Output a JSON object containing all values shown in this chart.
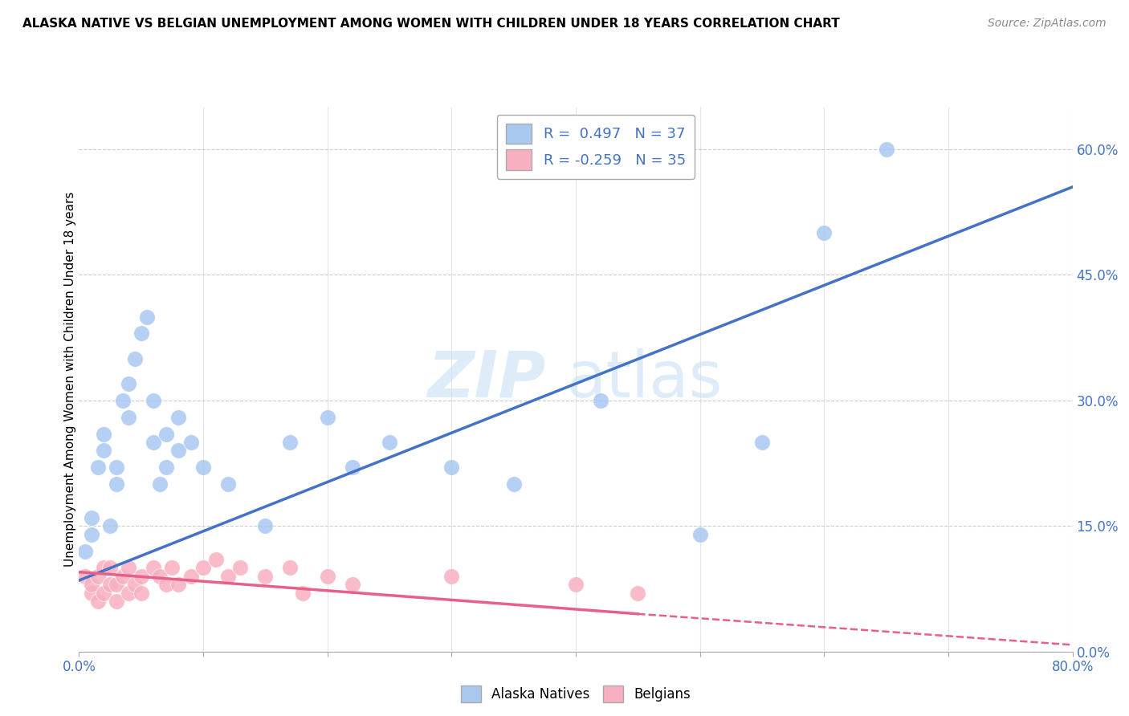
{
  "title": "ALASKA NATIVE VS BELGIAN UNEMPLOYMENT AMONG WOMEN WITH CHILDREN UNDER 18 YEARS CORRELATION CHART",
  "source": "Source: ZipAtlas.com",
  "ylabel": "Unemployment Among Women with Children Under 18 years",
  "xlim": [
    0.0,
    0.8
  ],
  "ylim": [
    0.0,
    0.65
  ],
  "xticks": [
    0.0,
    0.1,
    0.2,
    0.3,
    0.4,
    0.5,
    0.6,
    0.7,
    0.8
  ],
  "xtick_labels_show": [
    "0.0%",
    "",
    "",
    "",
    "",
    "",
    "",
    "",
    "80.0%"
  ],
  "yticks_right": [
    0.0,
    0.15,
    0.3,
    0.45,
    0.6
  ],
  "ytick_labels_right": [
    "0.0%",
    "15.0%",
    "30.0%",
    "45.0%",
    "60.0%"
  ],
  "alaska_R": 0.497,
  "alaska_N": 37,
  "belgian_R": -0.259,
  "belgian_N": 35,
  "alaska_color": "#A8C8F0",
  "belgian_color": "#F8B0C0",
  "alaska_line_color": "#4472C4",
  "belgian_line_color": "#E8608A",
  "watermark_color": "#C8E0F8",
  "alaska_scatter_x": [
    0.005,
    0.01,
    0.01,
    0.015,
    0.02,
    0.02,
    0.025,
    0.03,
    0.03,
    0.035,
    0.04,
    0.04,
    0.045,
    0.05,
    0.055,
    0.06,
    0.06,
    0.065,
    0.07,
    0.07,
    0.08,
    0.08,
    0.09,
    0.1,
    0.12,
    0.15,
    0.17,
    0.2,
    0.22,
    0.25,
    0.3,
    0.35,
    0.42,
    0.5,
    0.55,
    0.6,
    0.65
  ],
  "alaska_scatter_y": [
    0.12,
    0.14,
    0.16,
    0.22,
    0.24,
    0.26,
    0.15,
    0.2,
    0.22,
    0.3,
    0.28,
    0.32,
    0.35,
    0.38,
    0.4,
    0.25,
    0.3,
    0.2,
    0.22,
    0.26,
    0.24,
    0.28,
    0.25,
    0.22,
    0.2,
    0.15,
    0.25,
    0.28,
    0.22,
    0.25,
    0.22,
    0.2,
    0.3,
    0.14,
    0.25,
    0.5,
    0.6
  ],
  "belgian_scatter_x": [
    0.005,
    0.01,
    0.01,
    0.015,
    0.015,
    0.02,
    0.02,
    0.025,
    0.025,
    0.03,
    0.03,
    0.035,
    0.04,
    0.04,
    0.045,
    0.05,
    0.05,
    0.06,
    0.065,
    0.07,
    0.075,
    0.08,
    0.09,
    0.1,
    0.11,
    0.12,
    0.13,
    0.15,
    0.17,
    0.18,
    0.2,
    0.22,
    0.3,
    0.4,
    0.45
  ],
  "belgian_scatter_y": [
    0.09,
    0.07,
    0.08,
    0.06,
    0.09,
    0.07,
    0.1,
    0.08,
    0.1,
    0.06,
    0.08,
    0.09,
    0.07,
    0.1,
    0.08,
    0.07,
    0.09,
    0.1,
    0.09,
    0.08,
    0.1,
    0.08,
    0.09,
    0.1,
    0.11,
    0.09,
    0.1,
    0.09,
    0.1,
    0.07,
    0.09,
    0.08,
    0.09,
    0.08,
    0.07
  ],
  "alaska_line_x0": 0.0,
  "alaska_line_y0": 0.085,
  "alaska_line_x1": 0.8,
  "alaska_line_y1": 0.555,
  "belgian_line_x0": 0.0,
  "belgian_line_y0": 0.095,
  "belgian_line_x1_solid": 0.45,
  "belgian_line_y1_solid": 0.045,
  "belgian_line_x1_dash": 0.8,
  "belgian_line_y1_dash": 0.008
}
